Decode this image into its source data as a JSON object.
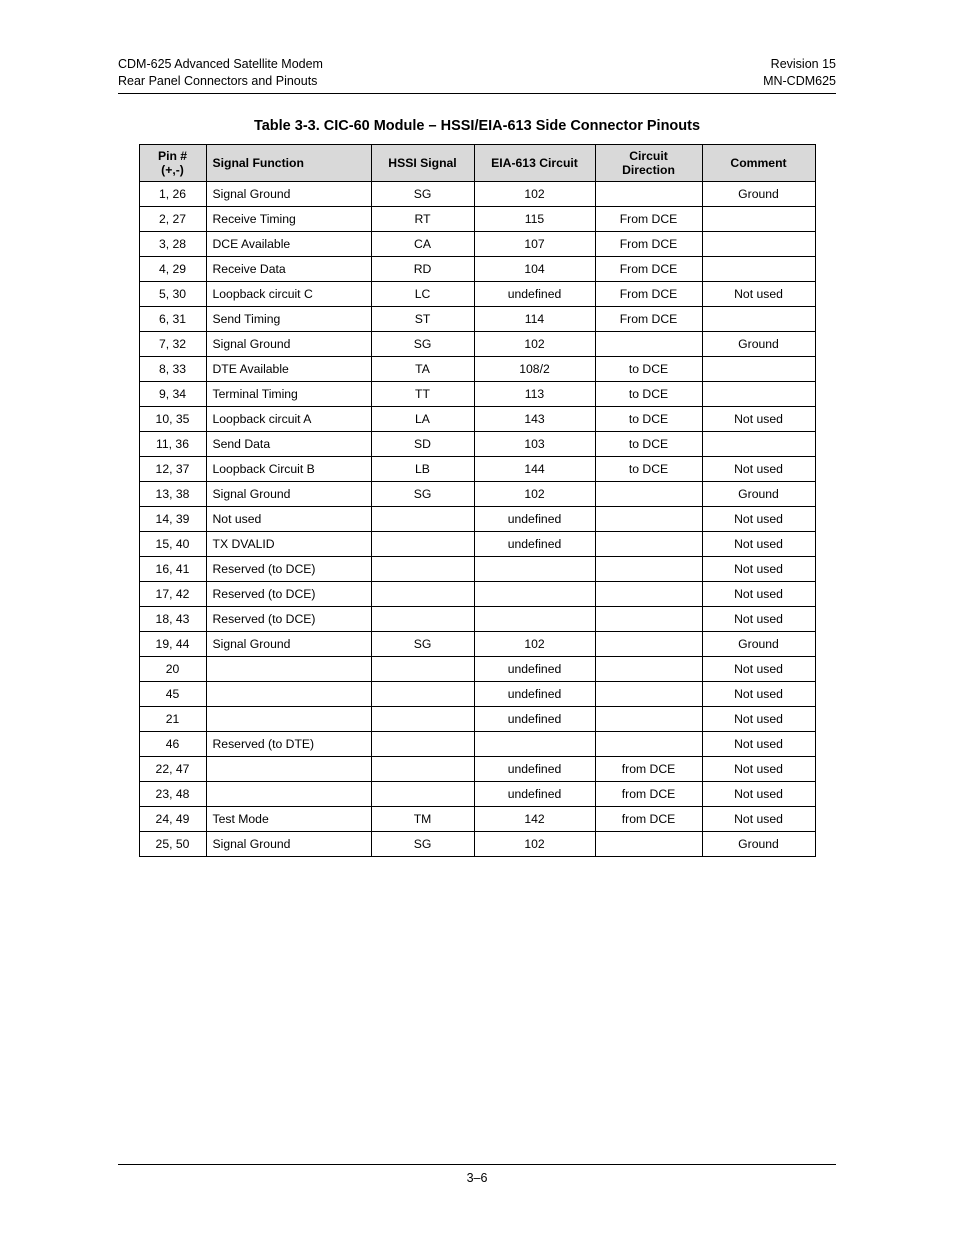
{
  "header": {
    "left_line1": "CDM-625 Advanced Satellite Modem",
    "left_line2": "Rear Panel Connectors and Pinouts",
    "right_line1": "Revision 15",
    "right_line2": "MN-CDM625"
  },
  "table": {
    "title": "Table 3-3.  CIC-60 Module – HSSI/EIA-613 Side Connector Pinouts",
    "columns": {
      "pin_l1": "Pin #",
      "pin_l2": "(+,-)",
      "func": "Signal Function",
      "hssi": "HSSI Signal",
      "eia": "EIA-613 Circuit",
      "dir_l1": "Circuit",
      "dir_l2": "Direction",
      "comment": "Comment"
    },
    "rows": [
      {
        "pin": "1, 26",
        "func": "Signal Ground",
        "hssi": "SG",
        "eia": "102",
        "dir": "",
        "comment": "Ground"
      },
      {
        "pin": "2, 27",
        "func": "Receive Timing",
        "hssi": "RT",
        "eia": "115",
        "dir": "From DCE",
        "comment": ""
      },
      {
        "pin": "3, 28",
        "func": "DCE Available",
        "hssi": "CA",
        "eia": "107",
        "dir": "From DCE",
        "comment": ""
      },
      {
        "pin": "4, 29",
        "func": "Receive Data",
        "hssi": "RD",
        "eia": "104",
        "dir": "From DCE",
        "comment": ""
      },
      {
        "pin": "5, 30",
        "func": "Loopback circuit C",
        "hssi": "LC",
        "eia": "undefined",
        "dir": "From DCE",
        "comment": "Not used"
      },
      {
        "pin": "6, 31",
        "func": "Send Timing",
        "hssi": "ST",
        "eia": "114",
        "dir": "From DCE",
        "comment": ""
      },
      {
        "pin": "7, 32",
        "func": "Signal Ground",
        "hssi": "SG",
        "eia": "102",
        "dir": "",
        "comment": "Ground"
      },
      {
        "pin": "8, 33",
        "func": "DTE Available",
        "hssi": "TA",
        "eia": "108/2",
        "dir": "to DCE",
        "comment": ""
      },
      {
        "pin": "9, 34",
        "func": "Terminal Timing",
        "hssi": "TT",
        "eia": "113",
        "dir": "to DCE",
        "comment": ""
      },
      {
        "pin": "10, 35",
        "func": "Loopback circuit A",
        "hssi": "LA",
        "eia": "143",
        "dir": "to DCE",
        "comment": "Not used"
      },
      {
        "pin": "11, 36",
        "func": "Send Data",
        "hssi": "SD",
        "eia": "103",
        "dir": "to DCE",
        "comment": ""
      },
      {
        "pin": "12, 37",
        "func": "Loopback Circuit B",
        "hssi": "LB",
        "eia": "144",
        "dir": "to DCE",
        "comment": "Not used"
      },
      {
        "pin": "13, 38",
        "func": "Signal Ground",
        "hssi": "SG",
        "eia": "102",
        "dir": "",
        "comment": "Ground"
      },
      {
        "pin": "14, 39",
        "func": "Not used",
        "hssi": "",
        "eia": "undefined",
        "dir": "",
        "comment": "Not used"
      },
      {
        "pin": "15, 40",
        "func": "TX DVALID",
        "hssi": "",
        "eia": "undefined",
        "dir": "",
        "comment": "Not used"
      },
      {
        "pin": "16, 41",
        "func": "Reserved (to DCE)",
        "hssi": "",
        "eia": "",
        "dir": "",
        "comment": "Not used"
      },
      {
        "pin": "17, 42",
        "func": "Reserved (to DCE)",
        "hssi": "",
        "eia": "",
        "dir": "",
        "comment": "Not used"
      },
      {
        "pin": "18, 43",
        "func": "Reserved (to DCE)",
        "hssi": "",
        "eia": "",
        "dir": "",
        "comment": "Not used"
      },
      {
        "pin": "19, 44",
        "func": "Signal Ground",
        "hssi": "SG",
        "eia": "102",
        "dir": "",
        "comment": "Ground"
      },
      {
        "pin": "20",
        "func": "",
        "hssi": "",
        "eia": "undefined",
        "dir": "",
        "comment": "Not used"
      },
      {
        "pin": "45",
        "func": "",
        "hssi": "",
        "eia": "undefined",
        "dir": "",
        "comment": "Not used"
      },
      {
        "pin": "21",
        "func": "",
        "hssi": "",
        "eia": "undefined",
        "dir": "",
        "comment": "Not used"
      },
      {
        "pin": "46",
        "func": "Reserved (to DTE)",
        "hssi": "",
        "eia": "",
        "dir": "",
        "comment": "Not used"
      },
      {
        "pin": "22, 47",
        "func": "",
        "hssi": "",
        "eia": "undefined",
        "dir": "from DCE",
        "comment": "Not used"
      },
      {
        "pin": "23, 48",
        "func": "",
        "hssi": "",
        "eia": "undefined",
        "dir": "from DCE",
        "comment": "Not used"
      },
      {
        "pin": "24, 49",
        "func": "Test Mode",
        "hssi": "TM",
        "eia": "142",
        "dir": "from DCE",
        "comment": "Not used"
      },
      {
        "pin": "25, 50",
        "func": "Signal Ground",
        "hssi": "SG",
        "eia": "102",
        "dir": "",
        "comment": "Ground"
      }
    ]
  },
  "footer": {
    "page_number": "3–6"
  }
}
